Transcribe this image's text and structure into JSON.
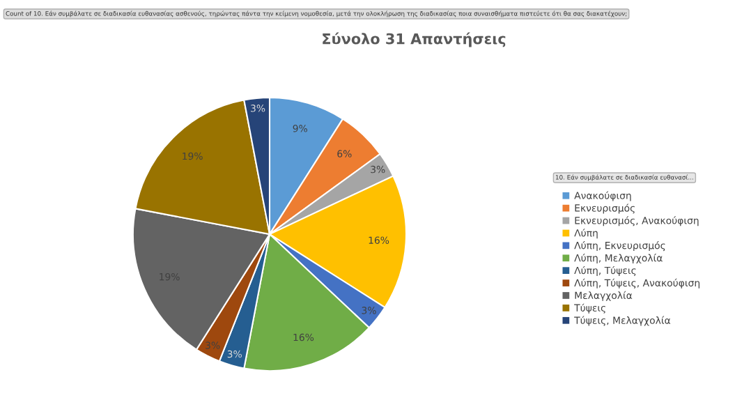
{
  "chart_data": {
    "type": "pie",
    "title": "Σύνολο 31 Απαντήσεις",
    "annotations": [
      "Count of 10. Εάν συμβάλατε σε διαδικασία ευθανασίας ασθενούς, τηρώντας πάντα την κείμενη νομοθεσία, μετά την ολοκλήρωση της διαδικασίας ποια συναισθήματα πιστεύετε ότι θα σας διακατέχουν;"
    ],
    "legend_title": "10. Εάν συμβάλατε σε διαδικασία ευθανασί...",
    "categories": [
      "Ανακούφιση",
      "Εκνευρισμός",
      "Εκνευρισμός, Ανακούφιση",
      "Λύπη",
      "Λύπη, Εκνευρισμός",
      "Λύπη, Μελαγχολία",
      "Λύπη, Τύψεις",
      "Λύπη, Τύψεις, Ανακούφιση",
      "Μελαγχολία",
      "Τύψεις",
      "Τύψεις, Μελαγχολία"
    ],
    "values": [
      9,
      6,
      3,
      16,
      3,
      16,
      3,
      3,
      19,
      19,
      3
    ],
    "value_labels": [
      "9%",
      "6%",
      "3%",
      "16%",
      "3%",
      "16%",
      "3%",
      "3%",
      "19%",
      "19%",
      "3%"
    ],
    "colors": [
      "#5b9bd5",
      "#ed7d31",
      "#a5a5a5",
      "#ffc000",
      "#4472c4",
      "#70ad47",
      "#255e91",
      "#9e480e",
      "#636363",
      "#997300",
      "#264478"
    ],
    "legend": "right"
  }
}
